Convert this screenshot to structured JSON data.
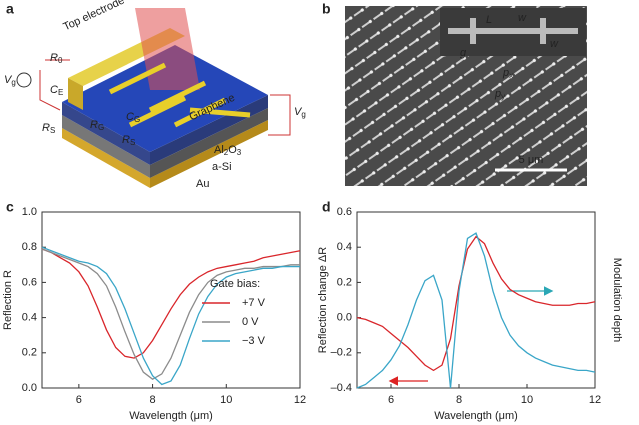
{
  "panel_labels": [
    "a",
    "b",
    "c",
    "d"
  ],
  "diagram_a": {
    "top_electrode": "Top electrode",
    "R0": {
      "main": "R",
      "sub": "0"
    },
    "Vg_left": {
      "main": "V",
      "sub": "g"
    },
    "CE": {
      "main": "C",
      "sub": "E"
    },
    "RS_left": {
      "main": "R",
      "sub": "S"
    },
    "RG": {
      "main": "R",
      "sub": "G"
    },
    "CG": {
      "main": "C",
      "sub": "G"
    },
    "RS_center": {
      "main": "R",
      "sub": "S"
    },
    "graphene": "Graphene",
    "al2o3": [
      "Al",
      "2",
      "O",
      "3"
    ],
    "asi": "a-Si",
    "au": "Au",
    "Vg_right": {
      "main": "V",
      "sub": "g"
    }
  },
  "micrograph_b": {
    "L": "L",
    "w1": "w",
    "w2": "w",
    "g": "g",
    "px": {
      "main": "p",
      "sub": "x"
    },
    "py": {
      "main": "p",
      "sub": "y"
    },
    "scale": "5 μm"
  },
  "chart_data": [
    {
      "type": "line",
      "xlabel": "Wavelength (μm)",
      "ylabel": "Reflection R",
      "x": [
        5,
        5.25,
        5.5,
        5.75,
        6,
        6.25,
        6.5,
        6.75,
        7,
        7.25,
        7.5,
        7.75,
        8,
        8.25,
        8.5,
        8.75,
        9,
        9.25,
        9.5,
        9.75,
        10,
        10.25,
        10.5,
        10.75,
        11,
        11.25,
        11.5,
        11.75,
        12
      ],
      "xlim": [
        5,
        12
      ],
      "xticks": [
        6,
        8,
        10,
        12
      ],
      "ylim": [
        0,
        1
      ],
      "yticks": [
        {
          "value": 0,
          "label": "0.0"
        },
        0.2,
        0.4,
        0.6,
        0.8,
        {
          "value": 1,
          "label": "1.0"
        }
      ],
      "legend": "right",
      "legend_title": "Gate bias:",
      "series": [
        {
          "name": "+7 V",
          "color": "#d9262b",
          "values": [
            0.79,
            0.77,
            0.74,
            0.71,
            0.66,
            0.58,
            0.46,
            0.33,
            0.23,
            0.18,
            0.17,
            0.2,
            0.27,
            0.36,
            0.45,
            0.53,
            0.59,
            0.63,
            0.66,
            0.68,
            0.69,
            0.7,
            0.71,
            0.72,
            0.74,
            0.75,
            0.76,
            0.77,
            0.78
          ]
        },
        {
          "name": "0 V",
          "color": "#8c8c8c",
          "values": [
            0.79,
            0.77,
            0.75,
            0.73,
            0.71,
            0.69,
            0.65,
            0.58,
            0.46,
            0.32,
            0.19,
            0.09,
            0.05,
            0.08,
            0.17,
            0.3,
            0.43,
            0.53,
            0.6,
            0.64,
            0.66,
            0.67,
            0.68,
            0.68,
            0.69,
            0.69,
            0.69,
            0.7,
            0.7
          ]
        },
        {
          "name": "−3 V",
          "color": "#3aa6c8",
          "values": [
            0.8,
            0.78,
            0.76,
            0.74,
            0.72,
            0.71,
            0.69,
            0.65,
            0.57,
            0.45,
            0.31,
            0.17,
            0.07,
            0.02,
            0.04,
            0.13,
            0.28,
            0.42,
            0.52,
            0.59,
            0.63,
            0.65,
            0.66,
            0.67,
            0.68,
            0.68,
            0.69,
            0.69,
            0.69
          ]
        }
      ]
    },
    {
      "type": "line",
      "xlabel": "Wavelength (μm)",
      "ylabel": "Reflection change ΔR",
      "y2label": "Modulation depth",
      "x": [
        5,
        5.25,
        5.5,
        5.75,
        6,
        6.25,
        6.5,
        6.75,
        7,
        7.25,
        7.5,
        7.75,
        8,
        8.25,
        8.5,
        8.75,
        9,
        9.25,
        9.5,
        9.75,
        10,
        10.25,
        10.5,
        10.75,
        11,
        11.25,
        11.5,
        11.75,
        12
      ],
      "xlim": [
        5,
        12
      ],
      "xticks": [
        6,
        8,
        10,
        12
      ],
      "ylim": [
        -0.4,
        0.6
      ],
      "yticks": [
        {
          "value": -0.4,
          "label": "–0.4"
        },
        {
          "value": -0.2,
          "label": "–0.2"
        },
        {
          "value": 0,
          "label": "0.0"
        },
        0.2,
        0.4,
        0.6
      ],
      "y2lim": [
        0,
        1
      ],
      "series": [
        {
          "color": "#d9262b",
          "values": [
            0,
            -0.01,
            -0.03,
            -0.05,
            -0.09,
            -0.13,
            -0.17,
            -0.22,
            -0.27,
            -0.3,
            -0.27,
            -0.12,
            0.18,
            0.39,
            0.46,
            0.42,
            0.31,
            0.22,
            0.16,
            0.13,
            0.11,
            0.09,
            0.08,
            0.07,
            0.07,
            0.07,
            0.08,
            0.08,
            0.09
          ]
        },
        {
          "color": "#3aa6c8",
          "axis": "y2",
          "values": [
            0,
            0.02,
            0.06,
            0.1,
            0.16,
            0.24,
            0.36,
            0.5,
            0.61,
            0.64,
            0.5,
            0,
            0.55,
            0.85,
            0.88,
            0.75,
            0.55,
            0.4,
            0.3,
            0.24,
            0.2,
            0.17,
            0.15,
            0.13,
            0.12,
            0.11,
            0.1,
            0.1,
            0.09
          ]
        }
      ]
    }
  ]
}
